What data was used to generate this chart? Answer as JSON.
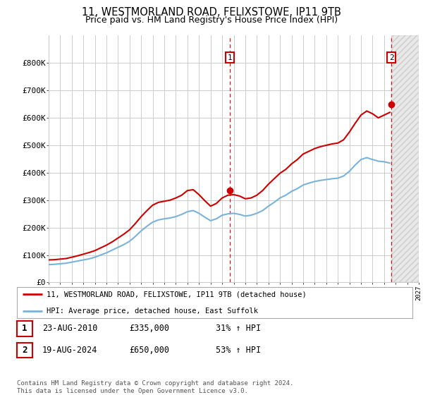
{
  "title": "11, WESTMORLAND ROAD, FELIXSTOWE, IP11 9TB",
  "subtitle": "Price paid vs. HM Land Registry's House Price Index (HPI)",
  "title_fontsize": 10.5,
  "subtitle_fontsize": 9,
  "background_color": "#ffffff",
  "grid_color": "#cccccc",
  "hpi_color": "#7ab3d9",
  "price_color": "#cc0000",
  "sale1_date": "23-AUG-2010",
  "sale1_price": 335000,
  "sale1_pct": "31%",
  "sale2_date": "19-AUG-2024",
  "sale2_price": 650000,
  "sale2_pct": "53%",
  "legend_label1": "11, WESTMORLAND ROAD, FELIXSTOWE, IP11 9TB (detached house)",
  "legend_label2": "HPI: Average price, detached house, East Suffolk",
  "footnote": "Contains HM Land Registry data © Crown copyright and database right 2024.\nThis data is licensed under the Open Government Licence v3.0.",
  "ylim": [
    0,
    900000
  ],
  "yticks": [
    0,
    100000,
    200000,
    300000,
    400000,
    500000,
    600000,
    700000,
    800000
  ],
  "ytick_labels": [
    "£0",
    "£100K",
    "£200K",
    "£300K",
    "£400K",
    "£500K",
    "£600K",
    "£700K",
    "£800K"
  ],
  "hpi_years": [
    1995,
    1995.5,
    1996,
    1996.5,
    1997,
    1997.5,
    1998,
    1998.5,
    1999,
    1999.5,
    2000,
    2000.5,
    2001,
    2001.5,
    2002,
    2002.5,
    2003,
    2003.5,
    2004,
    2004.5,
    2005,
    2005.5,
    2006,
    2006.5,
    2007,
    2007.5,
    2008,
    2008.5,
    2009,
    2009.5,
    2010,
    2010.5,
    2011,
    2011.5,
    2012,
    2012.5,
    2013,
    2013.5,
    2014,
    2014.5,
    2015,
    2015.5,
    2016,
    2016.5,
    2017,
    2017.5,
    2018,
    2018.5,
    2019,
    2019.5,
    2020,
    2020.5,
    2021,
    2021.5,
    2022,
    2022.5,
    2023,
    2023.5,
    2024,
    2024.5
  ],
  "hpi_values": [
    65000,
    66000,
    68000,
    70000,
    74000,
    78000,
    82000,
    86000,
    92000,
    100000,
    108000,
    118000,
    128000,
    138000,
    150000,
    168000,
    188000,
    205000,
    220000,
    228000,
    232000,
    235000,
    240000,
    248000,
    258000,
    262000,
    252000,
    238000,
    225000,
    232000,
    245000,
    250000,
    252000,
    248000,
    242000,
    245000,
    252000,
    262000,
    278000,
    292000,
    308000,
    318000,
    332000,
    342000,
    355000,
    362000,
    368000,
    372000,
    375000,
    378000,
    380000,
    388000,
    405000,
    428000,
    448000,
    455000,
    448000,
    442000,
    440000,
    435000
  ],
  "price_years": [
    1995,
    1995.5,
    1996,
    1996.5,
    1997,
    1997.5,
    1998,
    1998.5,
    1999,
    1999.5,
    2000,
    2000.5,
    2001,
    2001.5,
    2002,
    2002.5,
    2003,
    2003.5,
    2004,
    2004.5,
    2005,
    2005.5,
    2006,
    2006.5,
    2007,
    2007.5,
    2008,
    2008.5,
    2009,
    2009.5,
    2010,
    2010.5,
    2011,
    2011.5,
    2012,
    2012.5,
    2013,
    2013.5,
    2014,
    2014.5,
    2015,
    2015.5,
    2016,
    2016.5,
    2017,
    2017.5,
    2018,
    2018.5,
    2019,
    2019.5,
    2020,
    2020.5,
    2021,
    2021.5,
    2022,
    2022.5,
    2023,
    2023.5,
    2024,
    2024.5
  ],
  "price_values": [
    82000,
    83000,
    85000,
    87000,
    92000,
    97000,
    103000,
    109000,
    116000,
    126000,
    136000,
    148000,
    162000,
    176000,
    192000,
    215000,
    240000,
    262000,
    282000,
    292000,
    296000,
    300000,
    308000,
    318000,
    335000,
    338000,
    320000,
    298000,
    278000,
    288000,
    308000,
    318000,
    320000,
    315000,
    305000,
    308000,
    318000,
    335000,
    358000,
    378000,
    398000,
    412000,
    432000,
    448000,
    468000,
    478000,
    488000,
    495000,
    500000,
    505000,
    508000,
    520000,
    548000,
    580000,
    610000,
    625000,
    615000,
    600000,
    610000,
    620000
  ],
  "sale1_year": 2010.646,
  "sale2_year": 2024.636,
  "sale1_value": 335000,
  "sale2_value": 650000,
  "xmin": 1995,
  "xmax": 2027,
  "hatch_start": 2024.636
}
